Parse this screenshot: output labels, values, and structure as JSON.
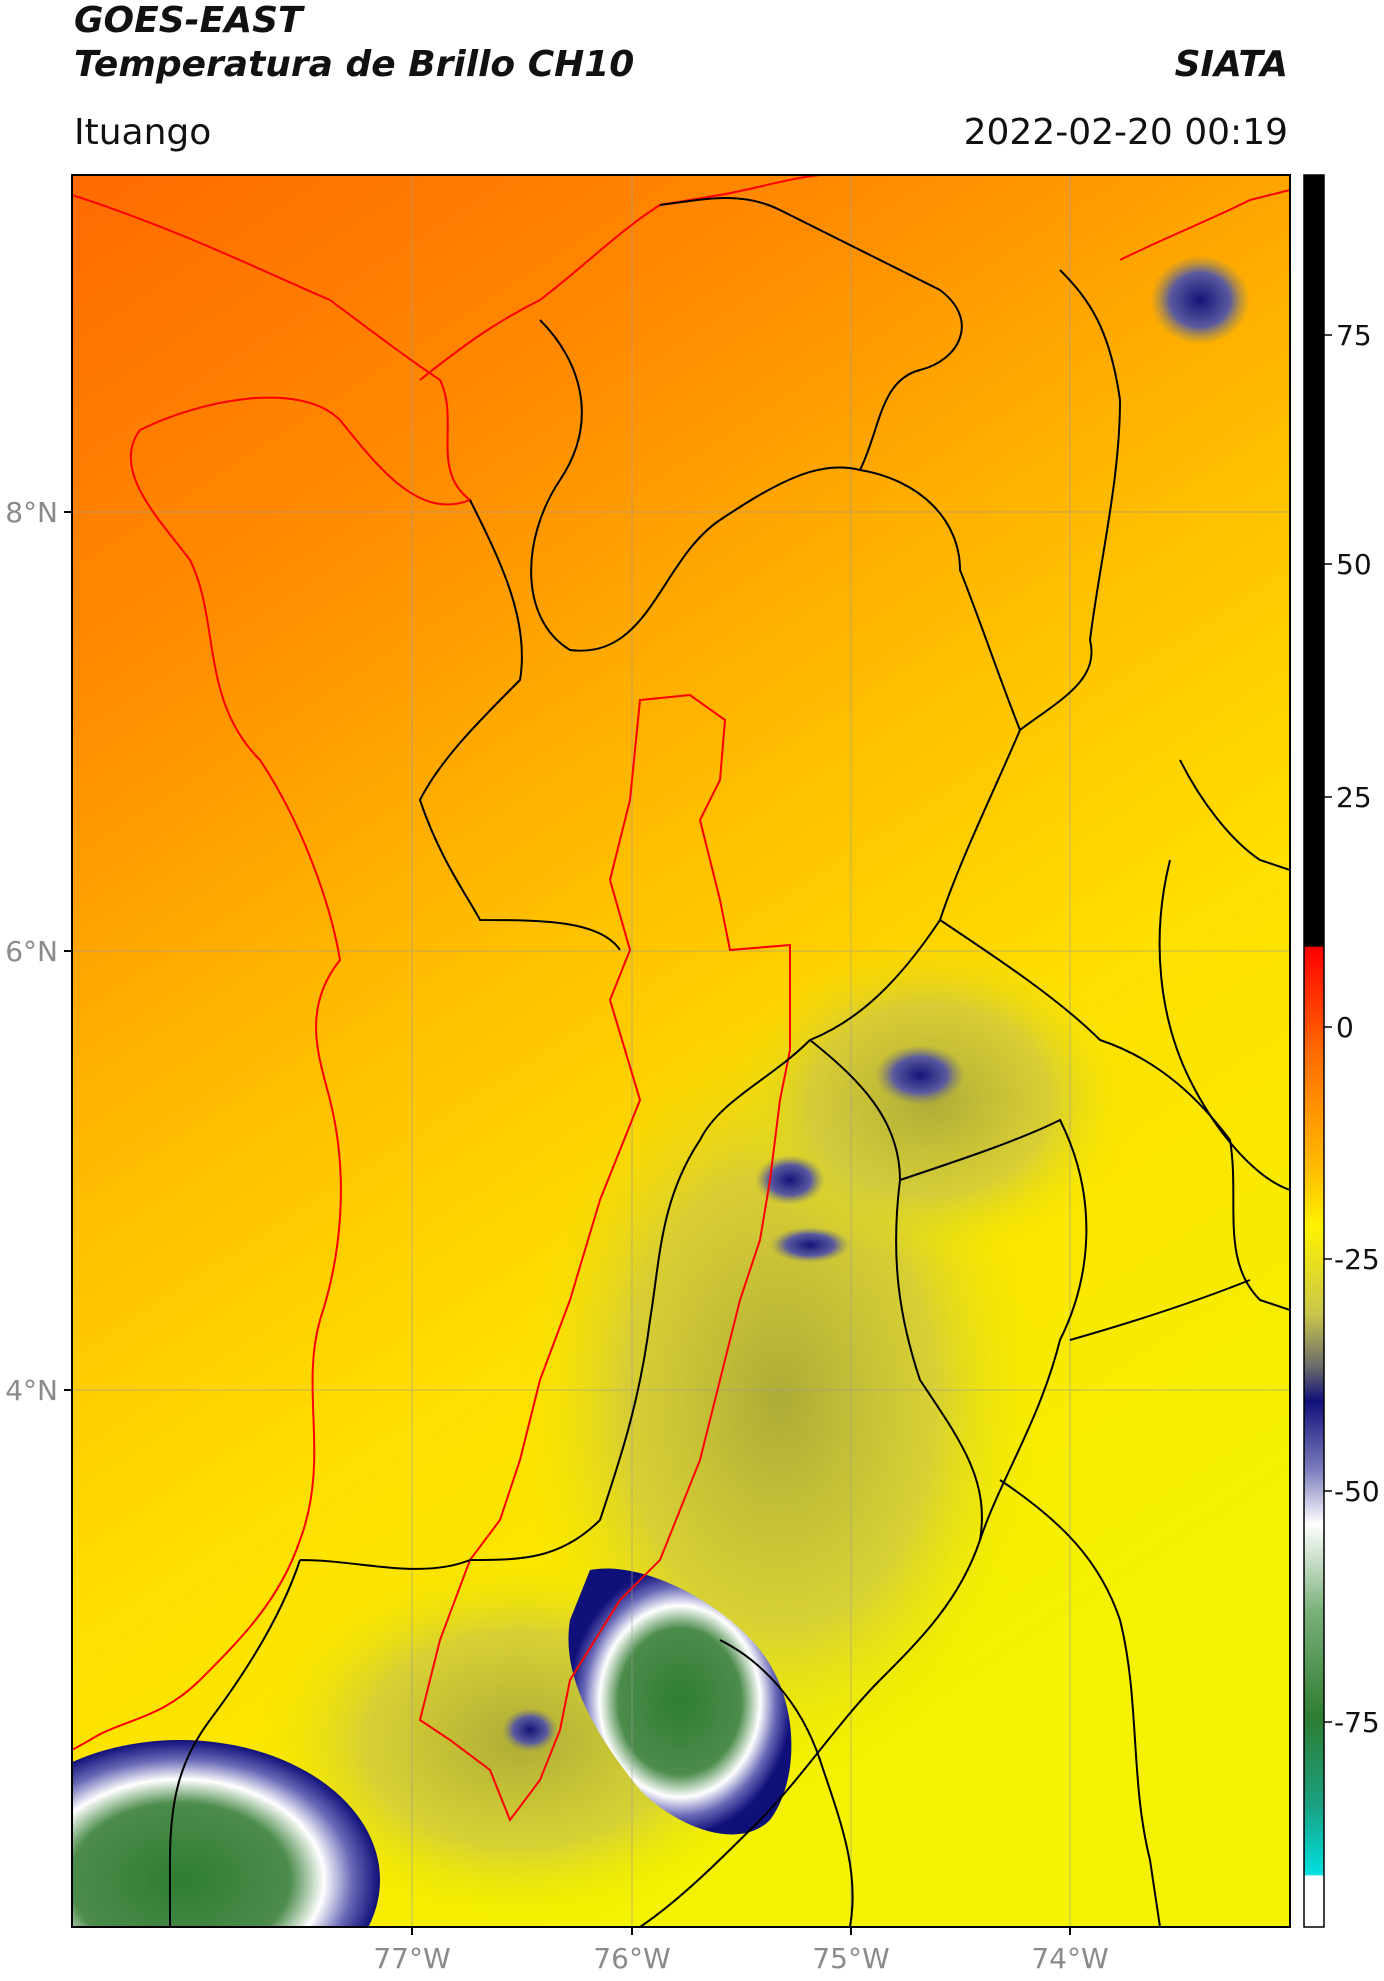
{
  "header": {
    "title_line1": "GOES-EAST",
    "title_line2": "Temperatura de Brillo CH10",
    "brand": "SIATA",
    "location": "Ituango",
    "timestamp": "2022-02-20 00:19"
  },
  "map": {
    "longitude_ticks": [
      "77°W",
      "76°W",
      "75°W",
      "74°W"
    ],
    "latitude_ticks": [
      "8°N",
      "6°N",
      "4°N"
    ],
    "colorbar_ticks": [
      "75",
      "50",
      "25",
      "0",
      "-25",
      "-50",
      "-75"
    ],
    "colors": {
      "warm": "#ff7b00",
      "mid": "#ffd200",
      "cool": "#e9f200",
      "cold": "#1a1a7a",
      "very_cold": "#2f7a2f",
      "border_dept": "#000000",
      "border_basin": "#ff0000"
    }
  }
}
